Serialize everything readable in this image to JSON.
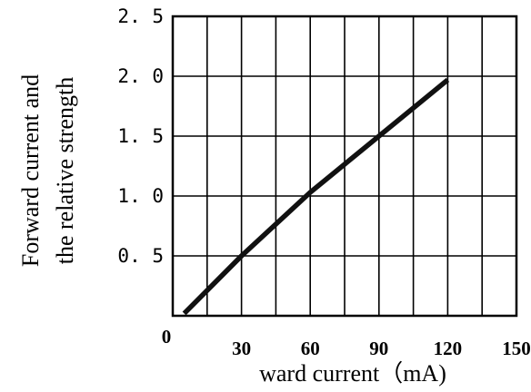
{
  "chart_data": {
    "type": "line",
    "title": "",
    "xlabel": "ward current（mA)",
    "ylabel_lines": [
      "Forward current and",
      "the relative strength"
    ],
    "xlim": [
      0,
      150
    ],
    "ylim": [
      0,
      2.5
    ],
    "x_ticks": [
      "0",
      "30",
      "60",
      "90",
      "120",
      "150"
    ],
    "y_ticks": [
      "2. 5",
      "2. 0",
      "1. 5",
      "1. 0",
      "0. 5"
    ],
    "grid": true,
    "series": [
      {
        "color": "#111111",
        "points": [
          {
            "x": 5,
            "y": 0.02
          },
          {
            "x": 30,
            "y": 0.5
          },
          {
            "x": 60,
            "y": 1.03
          },
          {
            "x": 90,
            "y": 1.5
          },
          {
            "x": 120,
            "y": 1.97
          }
        ]
      }
    ]
  }
}
